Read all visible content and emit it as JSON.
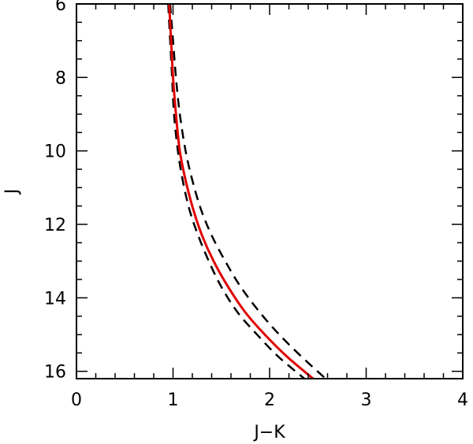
{
  "chart_data": {
    "type": "line",
    "xlabel": "J−K",
    "ylabel": "J",
    "xlim": [
      0,
      4
    ],
    "ylim": [
      16.2,
      6
    ],
    "y_inverted": true,
    "x_ticks": [
      0,
      1,
      2,
      3,
      4
    ],
    "x_tick_labels": [
      "0",
      "1",
      "2",
      "3",
      "4"
    ],
    "y_ticks": [
      6,
      8,
      10,
      12,
      14,
      16
    ],
    "y_tick_labels": [
      "6",
      "8",
      "10",
      "12",
      "14",
      "16"
    ],
    "grid": false,
    "series": [
      {
        "style": "solid",
        "color": "#e00000",
        "x": [
          0.96,
          0.98,
          1.0,
          1.03,
          1.07,
          1.13,
          1.21,
          1.3,
          1.42,
          1.57,
          1.75,
          1.95,
          2.18,
          2.45
        ],
        "y": [
          6.0,
          7.0,
          8.0,
          9.0,
          10.0,
          10.8,
          11.6,
          12.3,
          13.0,
          13.7,
          14.4,
          15.0,
          15.6,
          16.2
        ]
      },
      {
        "style": "dashed",
        "color": "#000000",
        "x": [
          0.97,
          1.0,
          1.03,
          1.07,
          1.13,
          1.2,
          1.29,
          1.4,
          1.54,
          1.7,
          1.9,
          2.1,
          2.33,
          2.58
        ],
        "y": [
          6.0,
          7.0,
          8.0,
          9.0,
          10.0,
          10.8,
          11.6,
          12.3,
          13.0,
          13.7,
          14.4,
          15.0,
          15.6,
          16.2
        ]
      },
      {
        "style": "dashed",
        "color": "#000000",
        "x": [
          0.95,
          0.97,
          0.99,
          1.01,
          1.05,
          1.1,
          1.17,
          1.26,
          1.37,
          1.5,
          1.67,
          1.87,
          2.09,
          2.36
        ],
        "y": [
          6.0,
          7.0,
          8.0,
          9.0,
          10.0,
          10.8,
          11.6,
          12.3,
          13.0,
          13.7,
          14.4,
          15.0,
          15.6,
          16.2
        ]
      }
    ]
  }
}
